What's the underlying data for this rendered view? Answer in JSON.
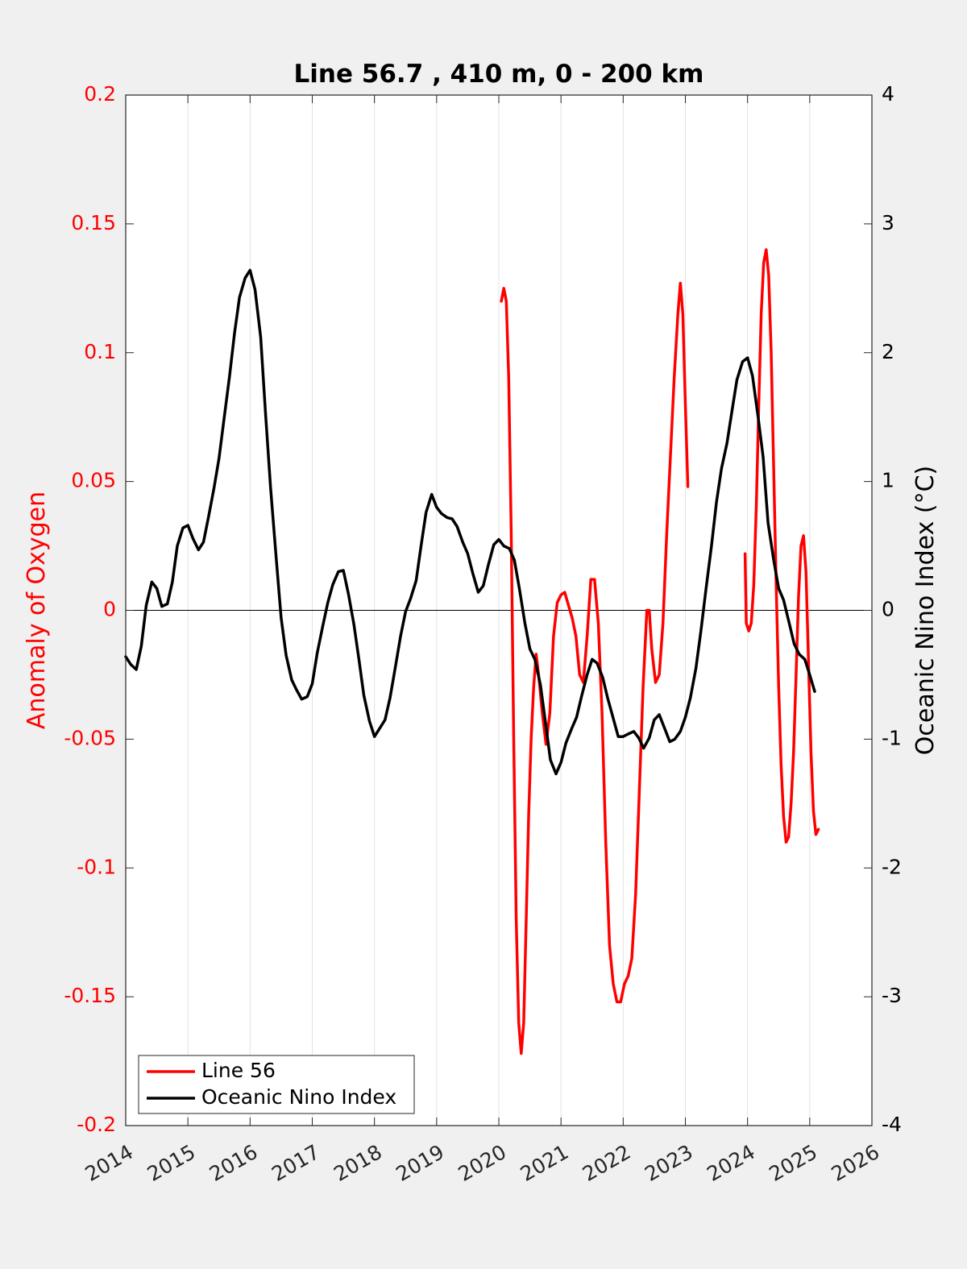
{
  "chart_data": {
    "type": "line",
    "title": "Line 56.7 , 410 m, 0 - 200 km",
    "xlim": [
      2014,
      2026
    ],
    "x_ticks": [
      "2014",
      "2015",
      "2016",
      "2017",
      "2018",
      "2019",
      "2020",
      "2021",
      "2022",
      "2023",
      "2024",
      "2025",
      "2026"
    ],
    "y_left": {
      "label": "Anomaly of Oxygen",
      "lim": [
        -0.2,
        0.2
      ],
      "ticks": [
        "0.2",
        "0.15",
        "0.1",
        "0.05",
        "0",
        "-0.05",
        "-0.1",
        "-0.15",
        "-0.2"
      ],
      "color": "#ff0000"
    },
    "y_right": {
      "label": "Oceanic Nino Index (°C)",
      "lim": [
        -4,
        4
      ],
      "ticks": [
        "4",
        "3",
        "2",
        "1",
        "0",
        "-1",
        "-2",
        "-3",
        "-4"
      ],
      "color": "#000000"
    },
    "grid": "vertical",
    "zero_line": true,
    "legend_position": "bottom-left",
    "series": [
      {
        "name": "Line 56",
        "axis": "left",
        "color": "#ff0000",
        "segments": [
          [
            [
              2020.04,
              0.12
            ],
            [
              2020.08,
              0.125
            ],
            [
              2020.12,
              0.12
            ],
            [
              2020.16,
              0.09
            ],
            [
              2020.2,
              0.03
            ],
            [
              2020.24,
              -0.05
            ],
            [
              2020.28,
              -0.12
            ],
            [
              2020.32,
              -0.16
            ],
            [
              2020.36,
              -0.172
            ],
            [
              2020.4,
              -0.16
            ],
            [
              2020.44,
              -0.12
            ],
            [
              2020.48,
              -0.08
            ],
            [
              2020.52,
              -0.05
            ],
            [
              2020.56,
              -0.03
            ],
            [
              2020.6,
              -0.017
            ],
            [
              2020.64,
              -0.025
            ],
            [
              2020.7,
              -0.04
            ],
            [
              2020.76,
              -0.052
            ],
            [
              2020.82,
              -0.04
            ],
            [
              2020.88,
              -0.01
            ],
            [
              2020.94,
              0.003
            ],
            [
              2021.0,
              0.006
            ],
            [
              2021.06,
              0.007
            ],
            [
              2021.12,
              0.002
            ],
            [
              2021.18,
              -0.003
            ],
            [
              2021.24,
              -0.01
            ],
            [
              2021.3,
              -0.025
            ],
            [
              2021.36,
              -0.028
            ],
            [
              2021.42,
              -0.01
            ],
            [
              2021.48,
              0.012
            ],
            [
              2021.54,
              0.012
            ],
            [
              2021.6,
              -0.005
            ],
            [
              2021.66,
              -0.04
            ],
            [
              2021.72,
              -0.09
            ],
            [
              2021.78,
              -0.13
            ],
            [
              2021.84,
              -0.145
            ],
            [
              2021.9,
              -0.152
            ],
            [
              2021.96,
              -0.152
            ],
            [
              2022.02,
              -0.145
            ],
            [
              2022.08,
              -0.142
            ],
            [
              2022.14,
              -0.135
            ],
            [
              2022.2,
              -0.11
            ],
            [
              2022.26,
              -0.07
            ],
            [
              2022.32,
              -0.03
            ],
            [
              2022.38,
              0.0
            ],
            [
              2022.42,
              0.0
            ],
            [
              2022.46,
              -0.015
            ],
            [
              2022.52,
              -0.028
            ],
            [
              2022.58,
              -0.025
            ],
            [
              2022.64,
              -0.005
            ],
            [
              2022.7,
              0.03
            ],
            [
              2022.76,
              0.06
            ],
            [
              2022.82,
              0.09
            ],
            [
              2022.88,
              0.115
            ],
            [
              2022.92,
              0.127
            ],
            [
              2022.96,
              0.115
            ],
            [
              2023.0,
              0.08
            ],
            [
              2023.04,
              0.048
            ]
          ],
          [
            [
              2023.96,
              0.022
            ],
            [
              2023.98,
              -0.005
            ],
            [
              2024.02,
              -0.008
            ],
            [
              2024.06,
              -0.005
            ],
            [
              2024.1,
              0.01
            ],
            [
              2024.14,
              0.04
            ],
            [
              2024.18,
              0.08
            ],
            [
              2024.22,
              0.115
            ],
            [
              2024.26,
              0.135
            ],
            [
              2024.3,
              0.14
            ],
            [
              2024.34,
              0.13
            ],
            [
              2024.38,
              0.1
            ],
            [
              2024.42,
              0.055
            ],
            [
              2024.46,
              0.01
            ],
            [
              2024.5,
              -0.03
            ],
            [
              2024.54,
              -0.06
            ],
            [
              2024.58,
              -0.08
            ],
            [
              2024.62,
              -0.09
            ],
            [
              2024.66,
              -0.088
            ],
            [
              2024.7,
              -0.075
            ],
            [
              2024.74,
              -0.055
            ],
            [
              2024.78,
              -0.025
            ],
            [
              2024.82,
              0.005
            ],
            [
              2024.86,
              0.025
            ],
            [
              2024.9,
              0.029
            ],
            [
              2024.94,
              0.015
            ],
            [
              2024.98,
              -0.02
            ],
            [
              2025.02,
              -0.055
            ],
            [
              2025.06,
              -0.078
            ],
            [
              2025.1,
              -0.087
            ],
            [
              2025.14,
              -0.085
            ]
          ]
        ]
      },
      {
        "name": "Oceanic Nino Index",
        "axis": "right",
        "color": "#000000",
        "segments": [
          [
            [
              2014.0,
              -0.36
            ],
            [
              2014.08,
              -0.42
            ],
            [
              2014.17,
              -0.46
            ],
            [
              2014.25,
              -0.28
            ],
            [
              2014.33,
              0.04
            ],
            [
              2014.42,
              0.22
            ],
            [
              2014.5,
              0.17
            ],
            [
              2014.58,
              0.03
            ],
            [
              2014.67,
              0.05
            ],
            [
              2014.75,
              0.22
            ],
            [
              2014.83,
              0.5
            ],
            [
              2014.92,
              0.64
            ],
            [
              2015.0,
              0.66
            ],
            [
              2015.08,
              0.56
            ],
            [
              2015.17,
              0.47
            ],
            [
              2015.25,
              0.53
            ],
            [
              2015.33,
              0.72
            ],
            [
              2015.42,
              0.95
            ],
            [
              2015.5,
              1.18
            ],
            [
              2015.58,
              1.48
            ],
            [
              2015.67,
              1.82
            ],
            [
              2015.75,
              2.15
            ],
            [
              2015.83,
              2.43
            ],
            [
              2015.92,
              2.58
            ],
            [
              2016.0,
              2.64
            ],
            [
              2016.08,
              2.49
            ],
            [
              2016.17,
              2.12
            ],
            [
              2016.25,
              1.52
            ],
            [
              2016.33,
              0.95
            ],
            [
              2016.42,
              0.41
            ],
            [
              2016.5,
              -0.06
            ],
            [
              2016.58,
              -0.35
            ],
            [
              2016.67,
              -0.54
            ],
            [
              2016.75,
              -0.62
            ],
            [
              2016.83,
              -0.69
            ],
            [
              2016.92,
              -0.67
            ],
            [
              2017.0,
              -0.57
            ],
            [
              2017.08,
              -0.33
            ],
            [
              2017.17,
              -0.12
            ],
            [
              2017.25,
              0.06
            ],
            [
              2017.33,
              0.2
            ],
            [
              2017.42,
              0.3
            ],
            [
              2017.5,
              0.31
            ],
            [
              2017.58,
              0.13
            ],
            [
              2017.67,
              -0.11
            ],
            [
              2017.75,
              -0.38
            ],
            [
              2017.83,
              -0.66
            ],
            [
              2017.92,
              -0.86
            ],
            [
              2018.0,
              -0.98
            ],
            [
              2018.08,
              -0.92
            ],
            [
              2018.17,
              -0.85
            ],
            [
              2018.25,
              -0.68
            ],
            [
              2018.33,
              -0.46
            ],
            [
              2018.42,
              -0.2
            ],
            [
              2018.5,
              -0.01
            ],
            [
              2018.58,
              0.09
            ],
            [
              2018.67,
              0.23
            ],
            [
              2018.75,
              0.5
            ],
            [
              2018.83,
              0.76
            ],
            [
              2018.92,
              0.9
            ],
            [
              2019.0,
              0.8
            ],
            [
              2019.08,
              0.75
            ],
            [
              2019.17,
              0.72
            ],
            [
              2019.25,
              0.71
            ],
            [
              2019.33,
              0.65
            ],
            [
              2019.42,
              0.53
            ],
            [
              2019.5,
              0.44
            ],
            [
              2019.58,
              0.29
            ],
            [
              2019.67,
              0.14
            ],
            [
              2019.75,
              0.19
            ],
            [
              2019.83,
              0.35
            ],
            [
              2019.92,
              0.51
            ],
            [
              2020.0,
              0.55
            ],
            [
              2020.08,
              0.5
            ],
            [
              2020.17,
              0.48
            ],
            [
              2020.25,
              0.39
            ],
            [
              2020.33,
              0.17
            ],
            [
              2020.42,
              -0.1
            ],
            [
              2020.5,
              -0.3
            ],
            [
              2020.58,
              -0.38
            ],
            [
              2020.67,
              -0.58
            ],
            [
              2020.75,
              -0.87
            ],
            [
              2020.83,
              -1.16
            ],
            [
              2020.92,
              -1.27
            ],
            [
              2021.0,
              -1.18
            ],
            [
              2021.08,
              -1.03
            ],
            [
              2021.17,
              -0.92
            ],
            [
              2021.25,
              -0.83
            ],
            [
              2021.33,
              -0.67
            ],
            [
              2021.42,
              -0.5
            ],
            [
              2021.5,
              -0.38
            ],
            [
              2021.58,
              -0.41
            ],
            [
              2021.67,
              -0.52
            ],
            [
              2021.75,
              -0.68
            ],
            [
              2021.83,
              -0.82
            ],
            [
              2021.92,
              -0.98
            ],
            [
              2022.0,
              -0.98
            ],
            [
              2022.08,
              -0.96
            ],
            [
              2022.17,
              -0.94
            ],
            [
              2022.25,
              -0.99
            ],
            [
              2022.33,
              -1.07
            ],
            [
              2022.42,
              -0.99
            ],
            [
              2022.5,
              -0.85
            ],
            [
              2022.58,
              -0.81
            ],
            [
              2022.67,
              -0.92
            ],
            [
              2022.75,
              -1.02
            ],
            [
              2022.83,
              -1.0
            ],
            [
              2022.92,
              -0.94
            ],
            [
              2023.0,
              -0.83
            ],
            [
              2023.08,
              -0.68
            ],
            [
              2023.17,
              -0.45
            ],
            [
              2023.25,
              -0.16
            ],
            [
              2023.33,
              0.16
            ],
            [
              2023.42,
              0.5
            ],
            [
              2023.5,
              0.84
            ],
            [
              2023.58,
              1.1
            ],
            [
              2023.67,
              1.3
            ],
            [
              2023.75,
              1.55
            ],
            [
              2023.83,
              1.79
            ],
            [
              2023.92,
              1.93
            ],
            [
              2024.0,
              1.96
            ],
            [
              2024.08,
              1.82
            ],
            [
              2024.17,
              1.5
            ],
            [
              2024.25,
              1.19
            ],
            [
              2024.33,
              0.68
            ],
            [
              2024.42,
              0.39
            ],
            [
              2024.5,
              0.17
            ],
            [
              2024.58,
              0.08
            ],
            [
              2024.67,
              -0.1
            ],
            [
              2024.75,
              -0.26
            ],
            [
              2024.83,
              -0.34
            ],
            [
              2024.92,
              -0.38
            ],
            [
              2025.0,
              -0.5
            ],
            [
              2025.08,
              -0.63
            ]
          ]
        ]
      }
    ]
  }
}
